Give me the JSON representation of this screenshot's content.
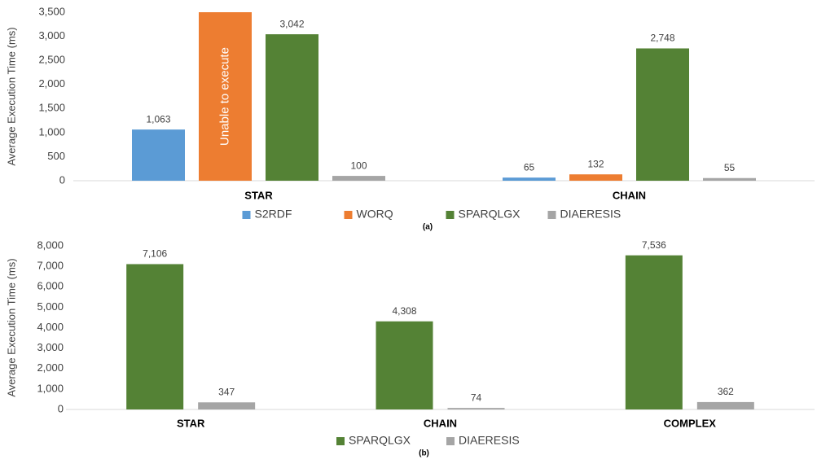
{
  "chart_data": [
    {
      "type": "bar",
      "subtitle": "(a)",
      "y_label": "Average Execution Time (ms)",
      "categories": [
        "STAR",
        "CHAIN"
      ],
      "series": [
        {
          "name": "S2RDF",
          "color": "#5b9bd5",
          "values": [
            1063,
            65
          ],
          "value_labels": [
            "1,063",
            "65"
          ]
        },
        {
          "name": "WORQ",
          "color": "#ed7d31",
          "values": [
            null,
            132
          ],
          "value_labels": [
            "Unable to execute",
            "132"
          ]
        },
        {
          "name": "SPARQLGX",
          "color": "#548235",
          "values": [
            3042,
            2748
          ],
          "value_labels": [
            "3,042",
            "2,748"
          ]
        },
        {
          "name": "DIAERESIS",
          "color": "#a5a5a5",
          "values": [
            100,
            55
          ],
          "value_labels": [
            "100",
            "55"
          ]
        }
      ],
      "ylim": [
        0,
        3500
      ],
      "yticks": [
        0,
        500,
        {
          "value": 1000,
          "label": "1,000"
        },
        {
          "value": 1500,
          "label": "1,500"
        },
        {
          "value": 2000,
          "label": "2,000"
        },
        {
          "value": 2500,
          "label": "2,500"
        },
        {
          "value": 3000,
          "label": "3,000"
        },
        {
          "value": 3500,
          "label": "3,500"
        }
      ],
      "grid": false
    },
    {
      "type": "bar",
      "subtitle": "(b)",
      "y_label": "Average Execution Time (ms)",
      "categories": [
        "STAR",
        "CHAIN",
        "COMPLEX"
      ],
      "series": [
        {
          "name": "SPARQLGX",
          "color": "#548235",
          "values": [
            7106,
            4308,
            7536
          ],
          "value_labels": [
            "7,106",
            "4,308",
            "7,536"
          ]
        },
        {
          "name": "DIAERESIS",
          "color": "#a5a5a5",
          "values": [
            347,
            74,
            362
          ],
          "value_labels": [
            "347",
            "74",
            "362"
          ]
        }
      ],
      "ylim": [
        0,
        8000
      ],
      "yticks": [
        0,
        {
          "value": 1000,
          "label": "1,000"
        },
        {
          "value": 2000,
          "label": "2,000"
        },
        {
          "value": 3000,
          "label": "3,000"
        },
        {
          "value": 4000,
          "label": "4,000"
        },
        {
          "value": 5000,
          "label": "5,000"
        },
        {
          "value": 6000,
          "label": "6,000"
        },
        {
          "value": 7000,
          "label": "7,000"
        },
        {
          "value": 8000,
          "label": "8,000"
        }
      ],
      "grid": false
    }
  ]
}
